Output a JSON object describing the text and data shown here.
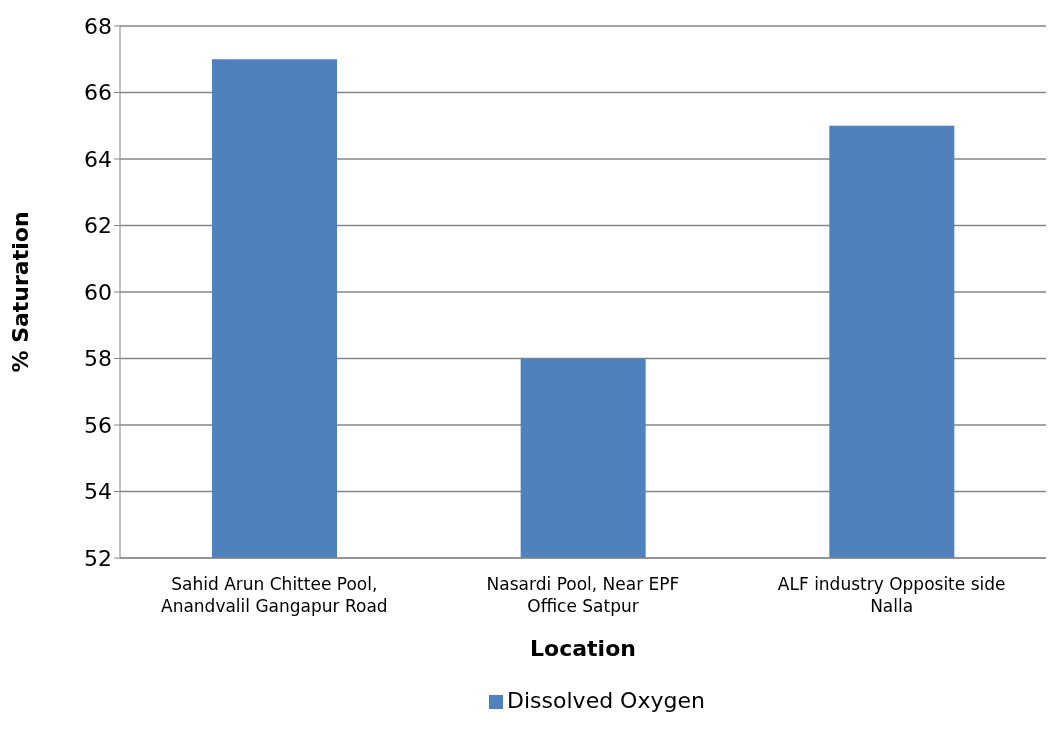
{
  "chart_data": {
    "type": "bar",
    "xlabel": "Location",
    "ylabel": "% Saturation",
    "categories": [
      "Sahid Arun Chittee Pool, Anandvalil Gangapur Road",
      "Nasardi Pool, Near EPF Office Satpur",
      "ALF industry Opposite side Nalla"
    ],
    "series": [
      {
        "name": "Dissolved Oxygen",
        "color": "#4f81bd",
        "values": [
          67,
          58,
          65
        ]
      }
    ],
    "ylim": [
      52,
      68
    ],
    "yticks": [
      52,
      54,
      56,
      58,
      60,
      62,
      64,
      66,
      68
    ],
    "grid": "y",
    "legend": "bottom"
  }
}
